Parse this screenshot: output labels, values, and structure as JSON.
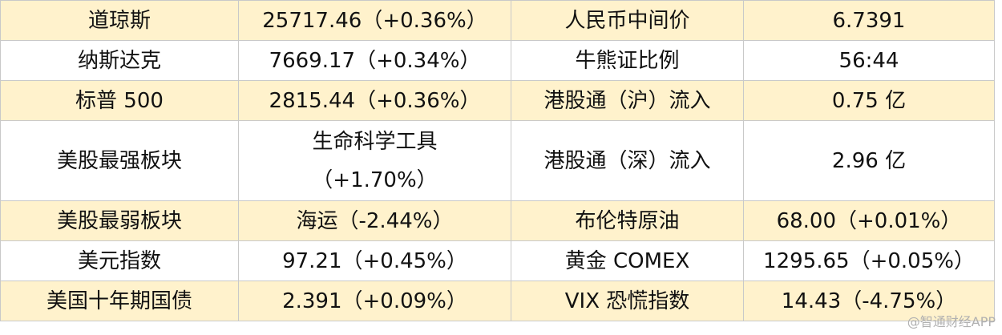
{
  "table": {
    "rows": [
      [
        "道琼斯",
        "25717.46（+0.36%）",
        "人民币中间价",
        "6.7391"
      ],
      [
        "纳斯达克",
        "7669.17（+0.34%）",
        "牛熊证比例",
        "56:44"
      ],
      [
        "标普 500",
        "2815.44（+0.36%）",
        "港股通（沪）流入",
        "0.75 亿"
      ],
      [
        "美股最强板块",
        [
          "生命科学工具",
          "（+1.70%）"
        ],
        "港股通（深）流入",
        "2.96 亿"
      ],
      [
        "美股最弱板块",
        "海运（-2.44%）",
        "布伦特原油",
        "68.00（+0.01%）"
      ],
      [
        "美元指数",
        "97.21（+0.45%）",
        "黄金 COMEX",
        "1295.65（+0.05%）"
      ],
      [
        "美国十年期国债",
        "2.391（+0.09%）",
        "VIX 恐慌指数",
        "14.43（-4.75%）"
      ]
    ]
  },
  "watermark": "@智通财经APP"
}
